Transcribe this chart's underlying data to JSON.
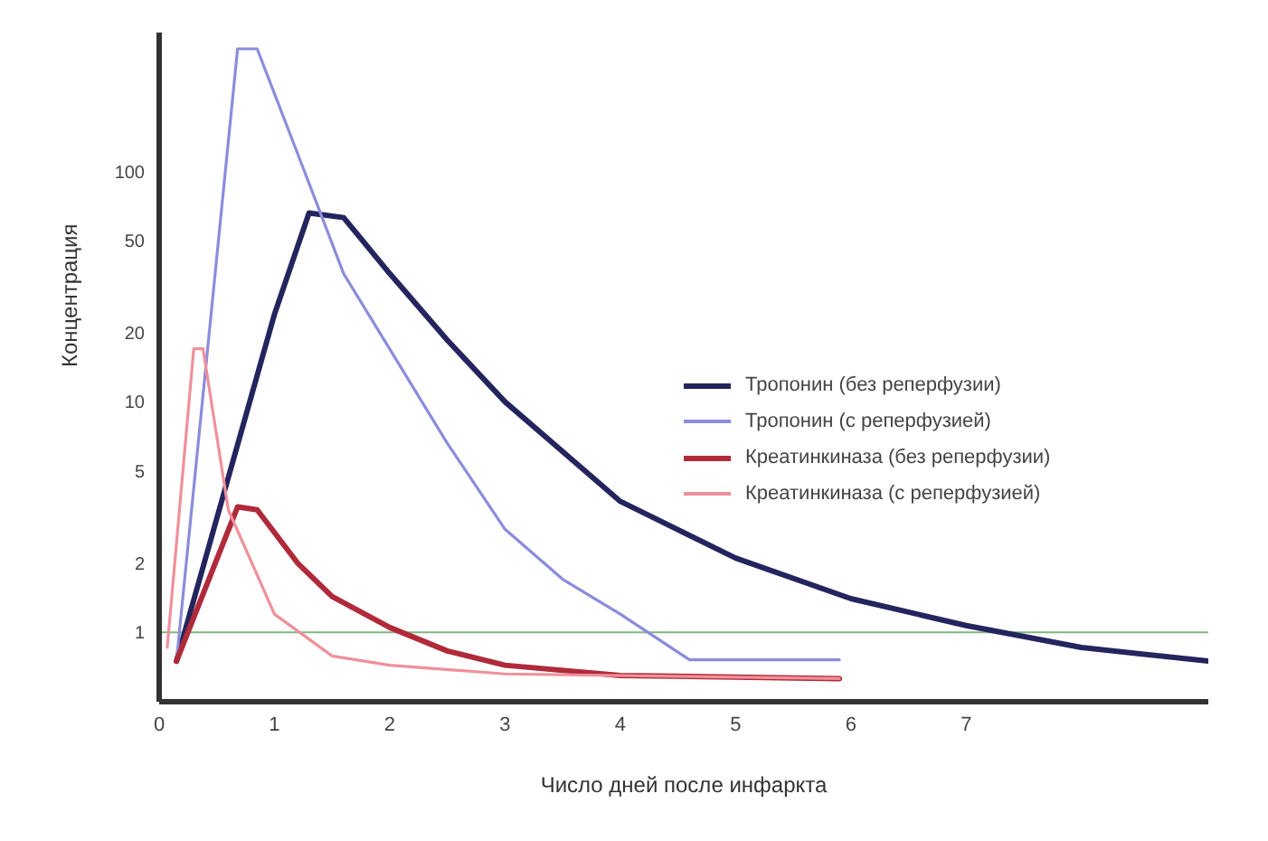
{
  "chart_data": {
    "type": "line",
    "xlabel": "Число дней после инфаркта",
    "ylabel": "Концентрация",
    "xlim": [
      0,
      9.1
    ],
    "xticks": [
      0,
      1,
      2,
      3,
      4,
      5,
      6,
      7
    ],
    "ylim": [
      0.5,
      400
    ],
    "yticks": [
      1,
      2,
      5,
      10,
      20,
      50,
      100
    ],
    "log": "y",
    "grid": false,
    "legend": "right",
    "marker": "none",
    "line_style": "solid",
    "ref_lines": [
      {
        "axis": "y",
        "value": 1,
        "color": "#7fb77f"
      }
    ],
    "series": [
      {
        "name": "Тропонин (без реперфузии)",
        "color": "#24245e",
        "x": [
          0.15,
          0.6,
          1.0,
          1.3,
          1.6,
          2.0,
          2.5,
          3.0,
          4.0,
          5.0,
          6.0,
          7.0,
          8.0,
          9.1
        ],
        "values": [
          0.75,
          4.7,
          24,
          66,
          63,
          36,
          18.5,
          10,
          3.7,
          2.1,
          1.4,
          1.07,
          0.86,
          0.75
        ]
      },
      {
        "name": "Тропонин (с реперфузией)",
        "color": "#8c8cdc",
        "x": [
          0.15,
          0.68,
          0.85,
          1.26,
          1.6,
          2.5,
          3.0,
          3.5,
          4.0,
          4.6,
          5.9
        ],
        "values": [
          0.75,
          340,
          340,
          100,
          36,
          6.6,
          2.8,
          1.7,
          1.2,
          0.76,
          0.76
        ]
      },
      {
        "name": "Креатинкиназа (без реперфузии)",
        "color": "#b02a3a",
        "x": [
          0.15,
          0.68,
          0.85,
          1.2,
          1.5,
          2.0,
          2.5,
          3.0,
          4.0,
          5.9
        ],
        "values": [
          0.75,
          3.5,
          3.4,
          2.0,
          1.43,
          1.05,
          0.83,
          0.72,
          0.65,
          0.63
        ]
      },
      {
        "name": "Креатинкиназа (с реперфузией)",
        "color": "#f0909a",
        "x": [
          0.07,
          0.3,
          0.38,
          0.6,
          1.0,
          1.5,
          2.0,
          3.0,
          5.9
        ],
        "values": [
          0.86,
          17,
          17,
          3.4,
          1.2,
          0.79,
          0.72,
          0.66,
          0.63
        ]
      }
    ]
  }
}
